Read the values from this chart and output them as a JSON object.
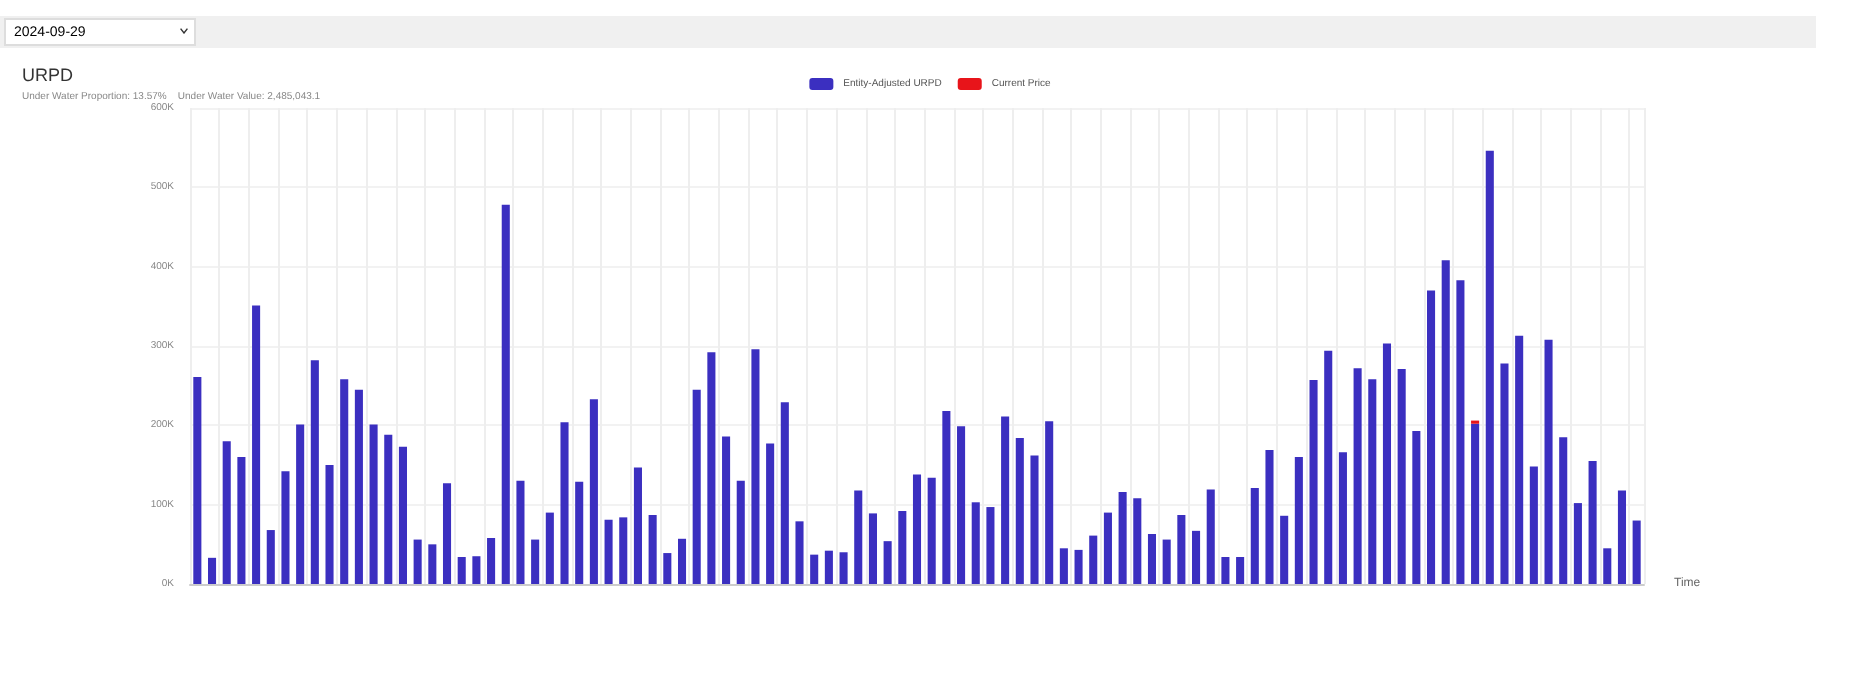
{
  "chart_data": {
    "type": "bar",
    "title": "URPD",
    "subtitle": "Under Water Proportion: 13.57%    Under Water Value: 2,485,043.1",
    "annotations": [
      "2024-09-29"
    ],
    "xlabel": "Time",
    "categories": [
      null,
      null,
      null,
      null,
      null,
      null,
      null,
      null,
      null,
      null,
      null,
      null,
      null,
      null,
      null,
      null,
      null,
      null,
      null,
      null,
      null,
      null,
      null,
      null,
      null,
      null,
      null,
      null,
      null,
      null,
      null,
      null,
      null,
      null,
      null,
      null,
      null,
      null,
      null,
      null,
      null,
      null,
      null,
      null,
      null,
      null,
      null,
      null,
      null,
      null,
      null,
      null,
      null,
      null,
      null,
      null,
      null,
      null,
      null,
      null,
      null,
      null,
      null,
      null,
      null,
      null,
      null,
      null,
      null,
      null,
      null,
      null,
      null,
      null,
      null,
      null,
      null,
      null,
      null,
      null,
      null,
      null,
      null,
      null,
      null,
      null,
      null,
      null,
      null,
      null,
      null,
      null,
      null,
      null,
      null,
      null,
      null,
      null,
      null
    ],
    "stacked": true,
    "series": [
      {
        "name": "Entity-Adjusted URPD",
        "color": "#3b2fc0",
        "values": [
          261000,
          33000,
          180000,
          160000,
          351000,
          68000,
          142000,
          201000,
          282000,
          150000,
          258000,
          245000,
          201000,
          188000,
          173000,
          56000,
          50000,
          127000,
          34000,
          35000,
          58000,
          478000,
          130000,
          56000,
          90000,
          204000,
          129000,
          233000,
          81000,
          84000,
          147000,
          87000,
          39000,
          57000,
          245000,
          292000,
          186000,
          130000,
          296000,
          177000,
          229000,
          79000,
          37000,
          42000,
          40000,
          118000,
          89000,
          54000,
          92000,
          138000,
          134000,
          218000,
          199000,
          103000,
          97000,
          211000,
          184000,
          162000,
          205000,
          45000,
          43000,
          61000,
          90000,
          116000,
          108000,
          63000,
          56000,
          87000,
          67000,
          119000,
          34000,
          34000,
          121000,
          169000,
          86000,
          160000,
          257000,
          294000,
          166000,
          272000,
          258000,
          303000,
          271000,
          193000,
          370000,
          408000,
          383000,
          202000,
          546000,
          278000,
          313000,
          148000,
          308000,
          185000,
          102000,
          155000,
          45000,
          118000,
          80000
        ]
      },
      {
        "name": "Current Price",
        "color": "#e8141a",
        "values": [
          null,
          null,
          null,
          null,
          null,
          null,
          null,
          null,
          null,
          null,
          null,
          null,
          null,
          null,
          null,
          null,
          null,
          null,
          null,
          null,
          null,
          null,
          null,
          null,
          null,
          null,
          null,
          null,
          null,
          null,
          null,
          null,
          null,
          null,
          null,
          null,
          null,
          null,
          null,
          null,
          null,
          null,
          null,
          null,
          null,
          null,
          null,
          null,
          null,
          null,
          null,
          null,
          null,
          null,
          null,
          null,
          null,
          null,
          null,
          null,
          null,
          null,
          null,
          null,
          null,
          null,
          null,
          null,
          null,
          null,
          null,
          null,
          null,
          null,
          null,
          null,
          null,
          null,
          null,
          null,
          null,
          null,
          null,
          null,
          null,
          null,
          null,
          4000,
          null,
          null,
          null,
          null,
          null,
          null,
          null,
          null,
          null,
          null,
          null
        ]
      }
    ],
    "ylim": [
      0,
      600000
    ],
    "yticks": [
      {
        "value": 0,
        "label": "0K"
      },
      {
        "value": 100000,
        "label": "100K"
      },
      {
        "value": 200000,
        "label": "200K"
      },
      {
        "value": 300000,
        "label": "300K"
      },
      {
        "value": 400000,
        "label": "400K"
      },
      {
        "value": 500000,
        "label": "500K"
      },
      {
        "value": 600000,
        "label": "600K"
      }
    ],
    "grid": true,
    "legend": "top"
  }
}
